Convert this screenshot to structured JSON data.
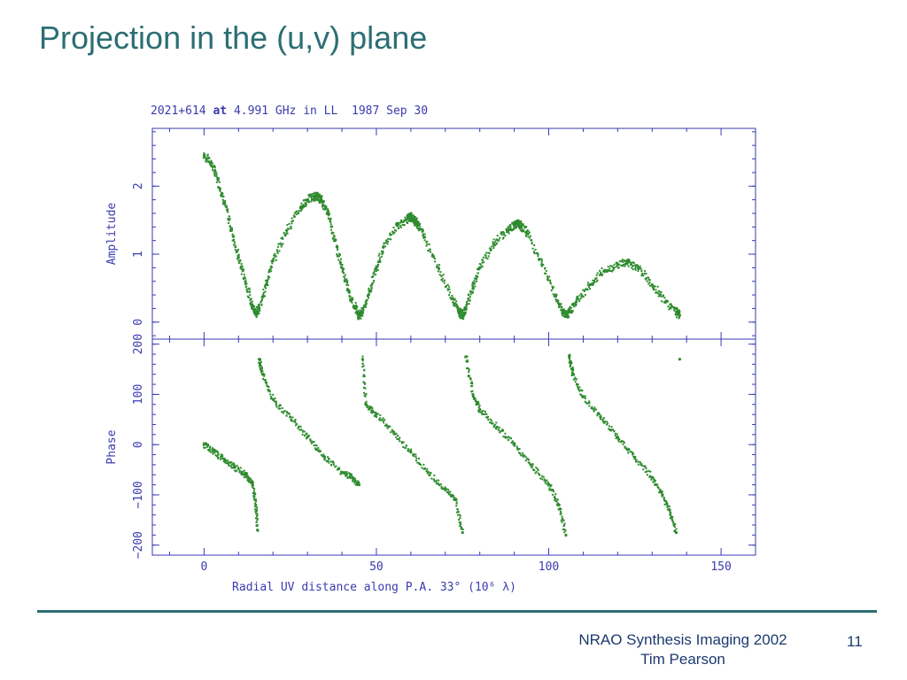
{
  "slide": {
    "title": "Projection in the (u,v) plane",
    "footer_line1": "NRAO Synthesis Imaging 2002",
    "footer_line2": "Tim Pearson",
    "page_number": "11"
  },
  "plot_header": {
    "source": "2021+614",
    "at": "at",
    "rest": "4.991 GHz in LL  1987 Sep 30"
  },
  "colors": {
    "points": "#2e8b2e",
    "axes": "#3a3ab0",
    "title": "#2c6e73"
  },
  "chart_data": [
    {
      "type": "scatter",
      "title": "2021+614 at 4.991 GHz in LL  1987 Sep 30",
      "xlabel": "",
      "ylabel": "Amplitude",
      "xlim": [
        -15,
        160
      ],
      "ylim": [
        -0.25,
        2.85
      ],
      "yticks": [
        "0",
        "1",
        "2"
      ],
      "series": [
        {
          "x": [
            0,
            2,
            4,
            6,
            8,
            10,
            12,
            14,
            15,
            16,
            18,
            20,
            24,
            28,
            30,
            32,
            33,
            34,
            36,
            38,
            40,
            42,
            44,
            45,
            46,
            48,
            50,
            52,
            56,
            59,
            60,
            61,
            62,
            64,
            68,
            72,
            74,
            75,
            76,
            78,
            80,
            84,
            88,
            90,
            91,
            92,
            94,
            98,
            102,
            104,
            105,
            106,
            108,
            112,
            116,
            120,
            123,
            126,
            130,
            134,
            137,
            138
          ],
          "y": [
            2.45,
            2.35,
            2.1,
            1.75,
            1.35,
            0.95,
            0.6,
            0.25,
            0.12,
            0.2,
            0.55,
            0.9,
            1.35,
            1.68,
            1.8,
            1.85,
            1.85,
            1.8,
            1.6,
            1.2,
            0.8,
            0.45,
            0.2,
            0.1,
            0.15,
            0.45,
            0.8,
            1.1,
            1.42,
            1.52,
            1.55,
            1.5,
            1.45,
            1.25,
            0.8,
            0.35,
            0.15,
            0.1,
            0.2,
            0.5,
            0.8,
            1.15,
            1.35,
            1.42,
            1.45,
            1.42,
            1.3,
            0.85,
            0.4,
            0.15,
            0.1,
            0.15,
            0.3,
            0.55,
            0.75,
            0.85,
            0.88,
            0.8,
            0.55,
            0.3,
            0.15,
            0.1
          ]
        }
      ]
    },
    {
      "type": "scatter",
      "xlabel": "Radial UV distance along P.A. 33°  (10⁶ λ)",
      "ylabel": "Phase",
      "xlim": [
        -15,
        160
      ],
      "ylim": [
        -220,
        210
      ],
      "xticks": [
        "0",
        "50",
        "100",
        "150"
      ],
      "yticks": [
        "−200",
        "−100",
        "0",
        "100",
        "200"
      ],
      "series": [
        {
          "x": [
            0,
            3,
            6,
            9,
            12,
            14,
            15,
            15.5,
            16,
            17,
            20,
            25,
            30,
            35,
            40,
            43,
            45,
            46,
            47,
            50,
            55,
            60,
            65,
            70,
            73,
            75,
            76,
            78,
            80,
            85,
            90,
            95,
            100,
            103,
            105,
            106,
            107,
            110,
            115,
            120,
            125,
            130,
            133,
            135,
            137,
            138
          ],
          "y": [
            0,
            -15,
            -30,
            -45,
            -60,
            -75,
            -120,
            -170,
            170,
            140,
            90,
            55,
            15,
            -25,
            -55,
            -65,
            -80,
            170,
            80,
            60,
            25,
            -15,
            -55,
            -90,
            -110,
            -175,
            175,
            100,
            70,
            35,
            0,
            -40,
            -80,
            -120,
            -180,
            175,
            140,
            95,
            55,
            15,
            -25,
            -65,
            -100,
            -130,
            -175,
            170
          ]
        }
      ]
    }
  ]
}
